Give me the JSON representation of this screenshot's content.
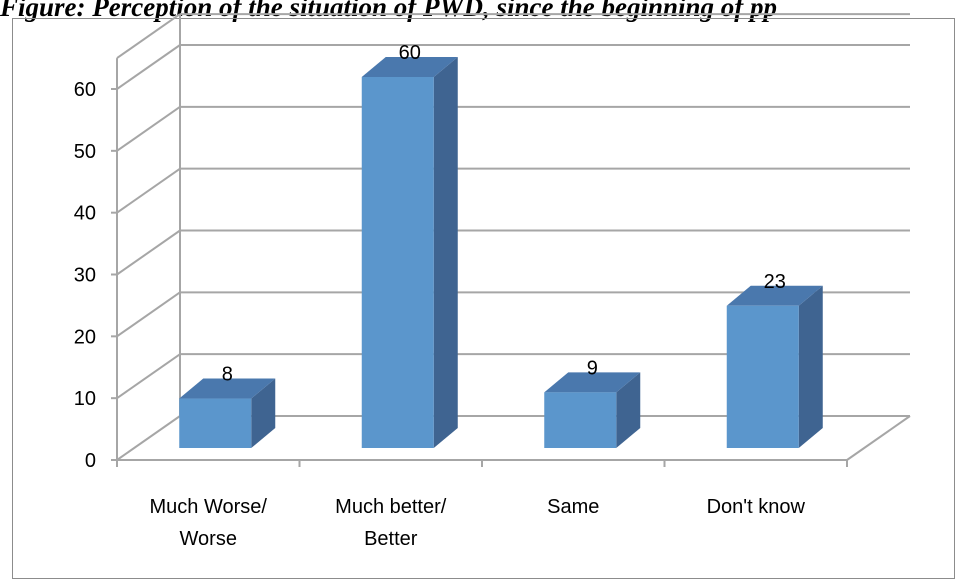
{
  "caption": "Figure: Perception of the situation of PWD, since the beginning of pp",
  "chart_data": {
    "type": "bar",
    "title": "",
    "xlabel": "",
    "ylabel": "",
    "ylim": [
      0,
      60
    ],
    "yticks": [
      0,
      10,
      20,
      30,
      40,
      50,
      60
    ],
    "grid": true,
    "style": "3d-column",
    "categories": [
      [
        "Much Worse/",
        "Worse"
      ],
      [
        "Much better/",
        "Better"
      ],
      [
        "Same"
      ],
      [
        "Don't know"
      ]
    ],
    "values": [
      8,
      60,
      9,
      23
    ],
    "bar_color": "#5b96cc",
    "bar_side_color": "#3f6491",
    "bar_top_color": "#4a78ad"
  }
}
